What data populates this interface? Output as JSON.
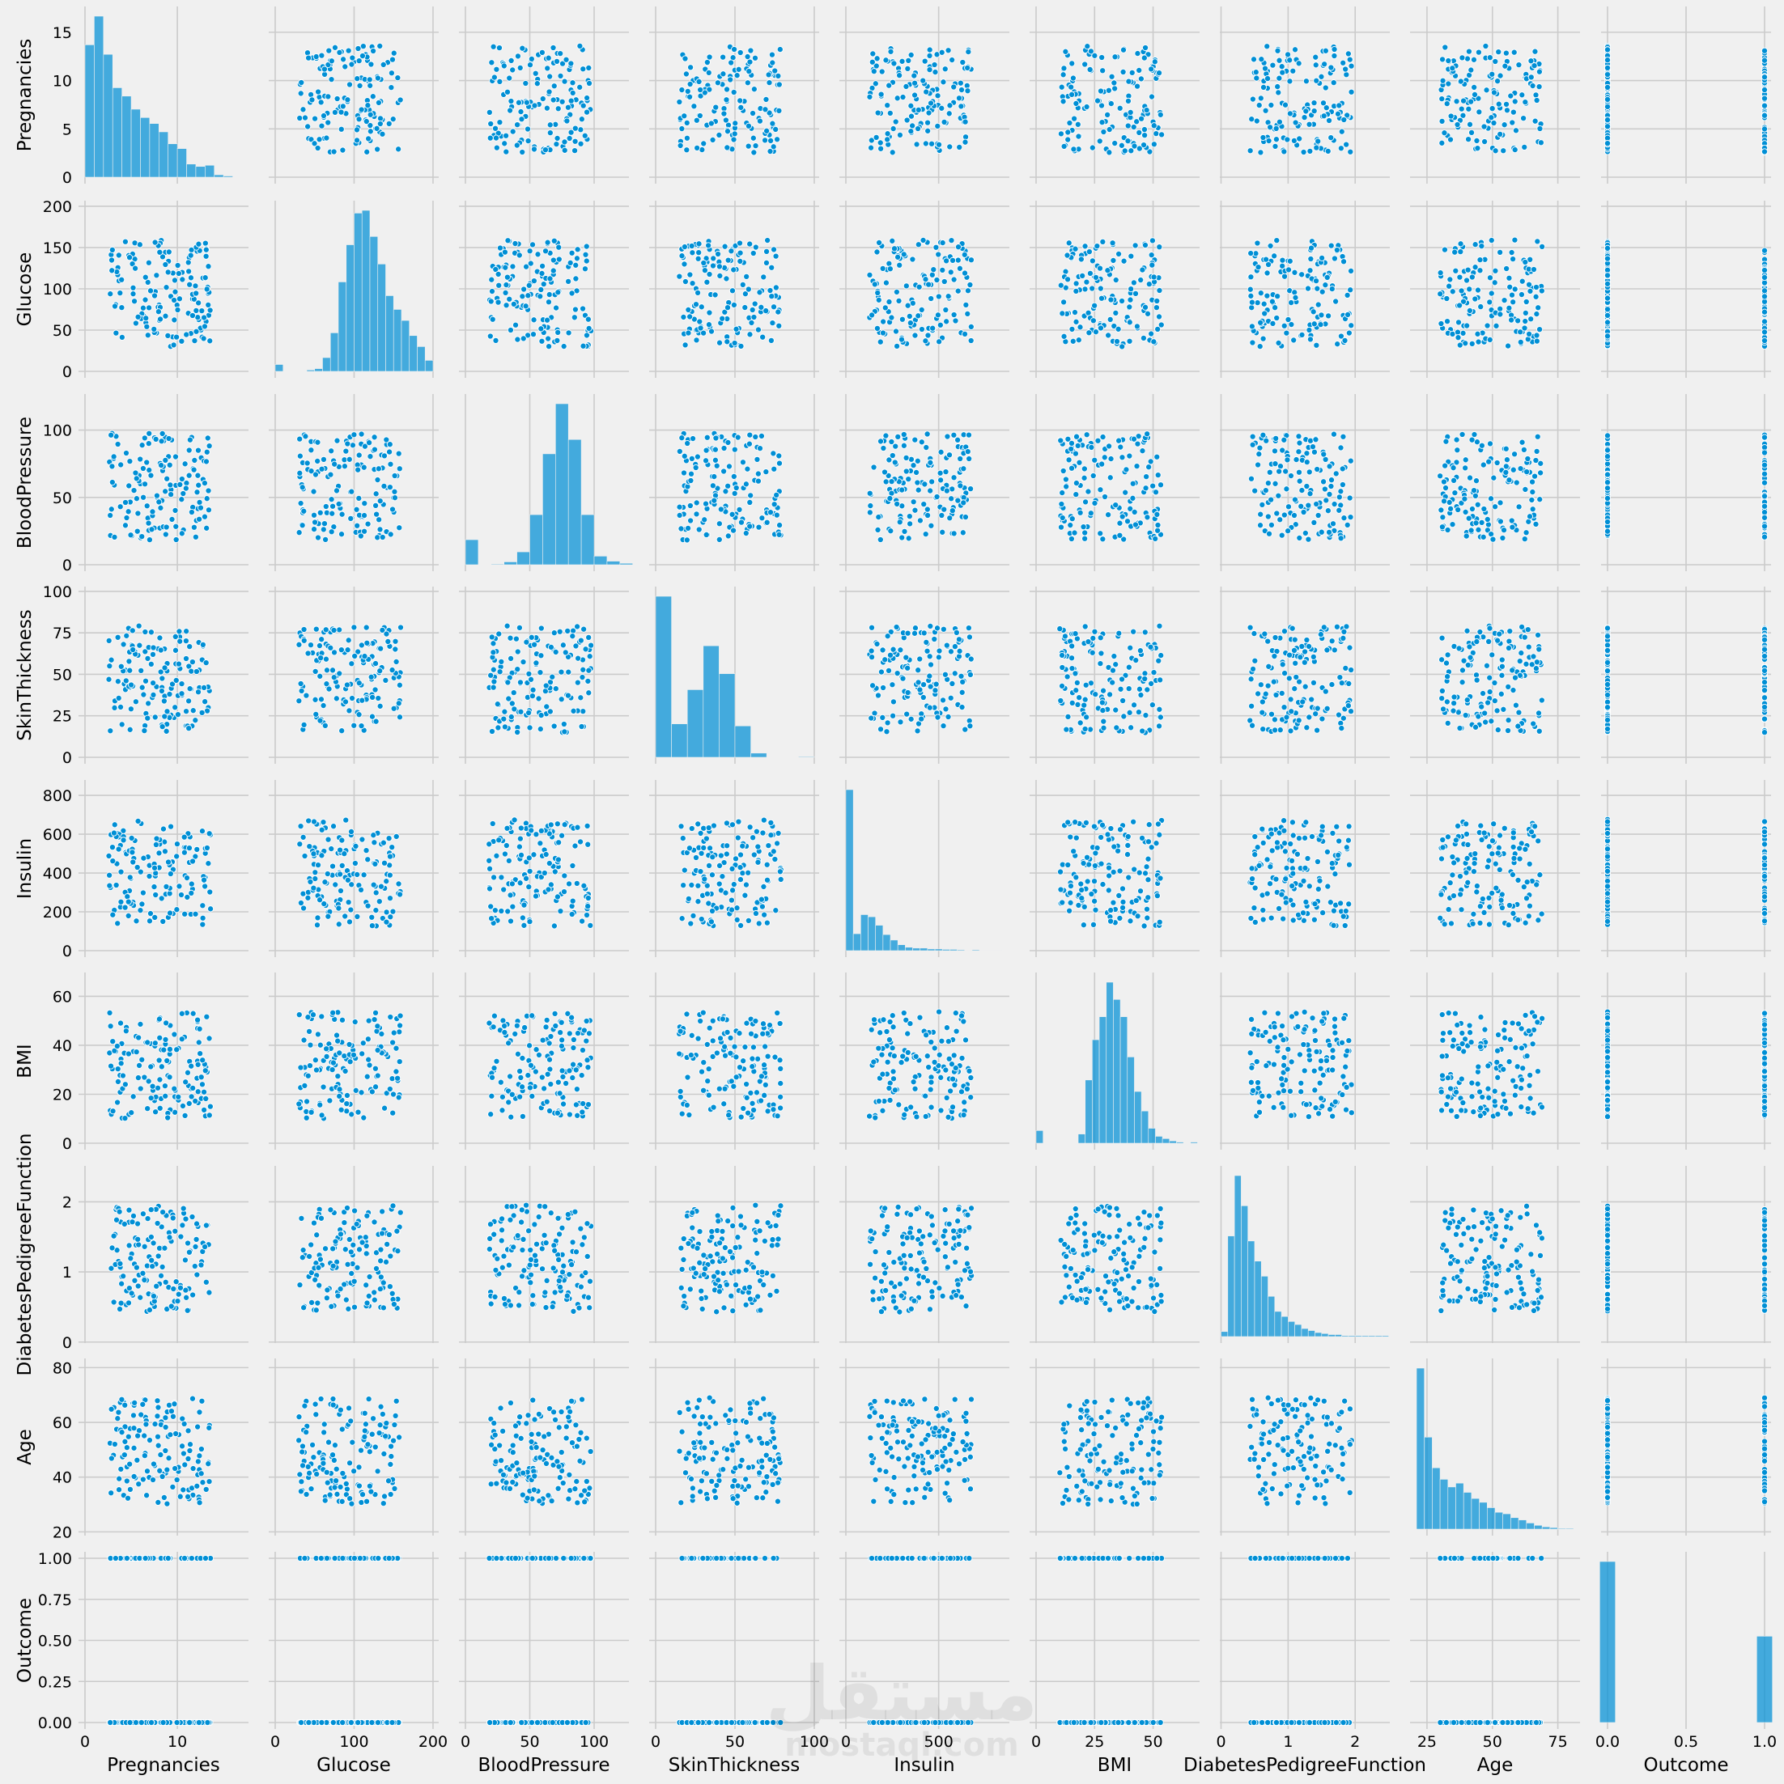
{
  "chart_data": {
    "type": "scatter",
    "figure": "pairplot",
    "variables": [
      "Pregnancies",
      "Glucose",
      "BloodPressure",
      "SkinThickness",
      "Insulin",
      "BMI",
      "DiabetesPedigreeFunction",
      "Age",
      "Outcome"
    ],
    "diagonal": "histogram",
    "offdiagonal": "scatter",
    "grid": true,
    "colors": {
      "points": "#008fd5",
      "background": "#f0f0f0",
      "grid": "#cbcbcb"
    },
    "axes": {
      "Pregnancies": {
        "range": [
          0,
          17
        ],
        "ticks": [
          0,
          10
        ],
        "yticks": [
          0,
          5,
          10,
          15
        ]
      },
      "Glucose": {
        "range": [
          0,
          199
        ],
        "ticks": [
          0,
          100,
          200
        ],
        "yticks": [
          0,
          50,
          100,
          150,
          200
        ]
      },
      "BloodPressure": {
        "range": [
          0,
          122
        ],
        "ticks": [
          0,
          50,
          100
        ],
        "yticks": [
          0,
          50,
          100
        ]
      },
      "SkinThickness": {
        "range": [
          0,
          99
        ],
        "ticks": [
          0,
          50,
          100
        ],
        "yticks": [
          0,
          25,
          50,
          75,
          100
        ]
      },
      "Insulin": {
        "range": [
          0,
          846
        ],
        "ticks": [
          0,
          500
        ],
        "yticks": [
          0,
          200,
          400,
          600,
          800
        ]
      },
      "BMI": {
        "range": [
          0,
          67.1
        ],
        "ticks": [
          0,
          25,
          50
        ],
        "yticks": [
          0,
          20,
          40,
          60
        ]
      },
      "DiabetesPedigreeFunction": {
        "range": [
          0.078,
          2.42
        ],
        "ticks": [
          0,
          1,
          2
        ],
        "yticks": [
          0,
          1,
          2
        ]
      },
      "Age": {
        "range": [
          21,
          81
        ],
        "ticks": [
          25,
          50,
          75
        ],
        "yticks": [
          20,
          40,
          60,
          80
        ]
      },
      "Outcome": {
        "range": [
          0,
          1
        ],
        "ticks": [
          0.0,
          0.5,
          1.0
        ],
        "yticks": [
          0.0,
          0.25,
          0.5,
          0.75,
          1.0
        ]
      }
    },
    "histograms": {
      "Pregnancies": {
        "bins": [
          0,
          1,
          2,
          3,
          4,
          5,
          6,
          7,
          8,
          9,
          10,
          11,
          12,
          13,
          14,
          15
        ],
        "counts": [
          111,
          135,
          103,
          75,
          68,
          57,
          50,
          45,
          38,
          28,
          24,
          11,
          9,
          10,
          2,
          1
        ]
      },
      "Glucose": {
        "bins": [
          0,
          10,
          20,
          30,
          40,
          50,
          60,
          70,
          80,
          90,
          100,
          110,
          120,
          130,
          140,
          150,
          160,
          170,
          180,
          190
        ],
        "counts": [
          5,
          0,
          0,
          0,
          1,
          2,
          10,
          28,
          65,
          92,
          115,
          117,
          98,
          78,
          55,
          45,
          37,
          26,
          18,
          8
        ]
      },
      "BloodPressure": {
        "bins": [
          0,
          10,
          20,
          30,
          40,
          50,
          60,
          70,
          80,
          90,
          100,
          110,
          120
        ],
        "counts": [
          35,
          0,
          1,
          4,
          18,
          70,
          155,
          225,
          175,
          70,
          12,
          5,
          2
        ]
      },
      "SkinThickness": {
        "bins": [
          0,
          10,
          20,
          30,
          40,
          50,
          60,
          70,
          80,
          90
        ],
        "counts": [
          231,
          48,
          97,
          160,
          120,
          45,
          6,
          0,
          0,
          1
        ]
      },
      "Insulin": {
        "bins": [
          0,
          40,
          80,
          120,
          160,
          200,
          240,
          280,
          320,
          360,
          400,
          440,
          480,
          520,
          560,
          600,
          640,
          680,
          720,
          760,
          800
        ],
        "counts": [
          380,
          40,
          85,
          80,
          60,
          38,
          25,
          14,
          8,
          6,
          6,
          4,
          4,
          3,
          3,
          2,
          1,
          2,
          1,
          1,
          1
        ]
      },
      "BMI": {
        "bins": [
          0,
          3,
          6,
          9,
          12,
          15,
          18,
          21,
          24,
          27,
          30,
          33,
          36,
          39,
          42,
          45,
          48,
          51,
          54,
          57,
          60,
          63,
          66
        ],
        "counts": [
          11,
          0,
          0,
          0,
          0,
          0,
          8,
          55,
          90,
          110,
          140,
          125,
          110,
          75,
          45,
          28,
          13,
          6,
          4,
          2,
          1,
          0,
          1
        ]
      },
      "DiabetesPedigreeFunction": {
        "bins": [
          0.0,
          0.1,
          0.2,
          0.3,
          0.4,
          0.5,
          0.6,
          0.7,
          0.8,
          0.9,
          1.0,
          1.1,
          1.2,
          1.3,
          1.4,
          1.5,
          1.6,
          1.7,
          1.8,
          1.9,
          2.0,
          2.1,
          2.2,
          2.3,
          2.4
        ],
        "counts": [
          5,
          100,
          160,
          130,
          95,
          75,
          60,
          40,
          25,
          20,
          15,
          12,
          8,
          6,
          4,
          3,
          2,
          2,
          1,
          1,
          1,
          1,
          1,
          1,
          1
        ]
      },
      "Age": {
        "bins": [
          21,
          24,
          27,
          30,
          33,
          36,
          39,
          42,
          45,
          48,
          51,
          54,
          57,
          60,
          63,
          66,
          69,
          72,
          75,
          78
        ],
        "counts": [
          210,
          120,
          80,
          65,
          55,
          60,
          48,
          40,
          35,
          28,
          22,
          20,
          15,
          12,
          8,
          5,
          3,
          2,
          1,
          1
        ]
      },
      "Outcome": {
        "bins": [
          0,
          1
        ],
        "counts": [
          500,
          268
        ]
      }
    },
    "notes_watermark": "mostaql.com"
  },
  "watermark": {
    "arabic": "مستقل",
    "latin": "mostaql.com"
  }
}
